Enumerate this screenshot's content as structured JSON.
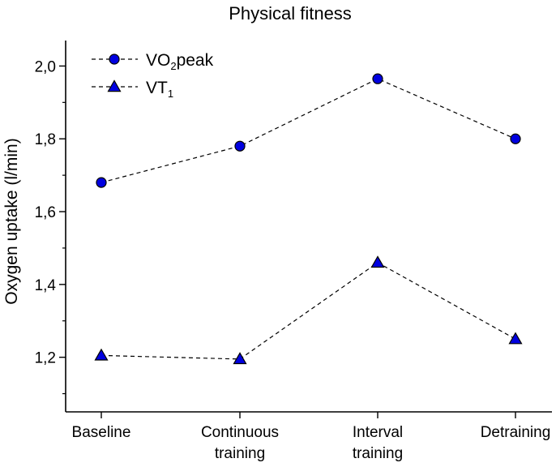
{
  "chart_data": {
    "type": "line",
    "title": "Physical fitness",
    "xlabel": "",
    "ylabel": "Oxygen uptake (l/min)",
    "categories": [
      [
        "Baseline"
      ],
      [
        "Continuous",
        "training"
      ],
      [
        "Interval",
        "training"
      ],
      [
        "Detraining"
      ]
    ],
    "ylim": [
      1.05,
      2.07
    ],
    "yticks": [
      1.2,
      1.4,
      1.6,
      1.8,
      2.0
    ],
    "ytick_labels": [
      "1,2",
      "1,4",
      "1,6",
      "1,8",
      "2,0"
    ],
    "series": [
      {
        "name": "VO2peak",
        "label_main": "VO",
        "label_sub": "2",
        "label_tail": "peak",
        "marker": "circle",
        "color": "#0000e0",
        "values": [
          1.68,
          1.78,
          1.965,
          1.8
        ]
      },
      {
        "name": "VT1",
        "label_main": "VT",
        "label_sub": "1",
        "label_tail": "",
        "marker": "triangle",
        "color": "#0000e0",
        "values": [
          1.205,
          1.195,
          1.46,
          1.25
        ]
      }
    ],
    "legend_position": "top-left"
  }
}
